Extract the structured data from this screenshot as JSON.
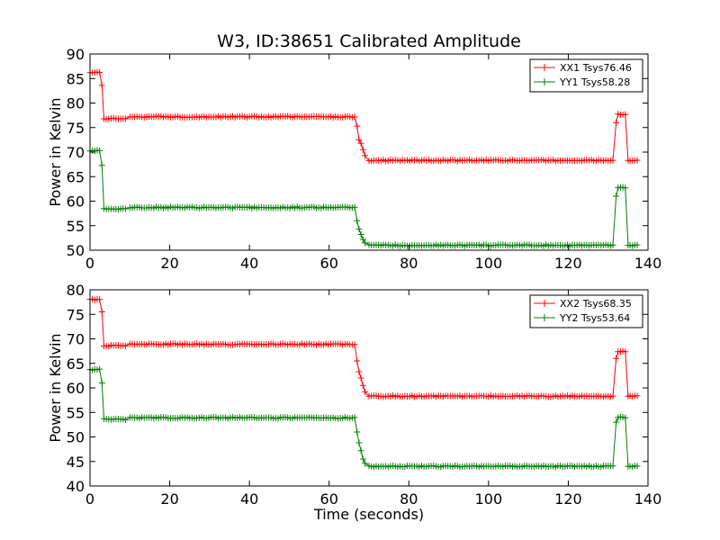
{
  "figure": {
    "title": "W3, ID:38651 Calibrated Amplitude",
    "xlabel": "Time (seconds)"
  },
  "chart_data": [
    {
      "type": "line",
      "title": "W3, ID:38651 Calibrated Amplitude",
      "xlabel": "",
      "ylabel": "Power in Kelvin",
      "xlim": [
        0,
        140
      ],
      "ylim": [
        50,
        90
      ],
      "xticks": [
        "0",
        "20",
        "40",
        "60",
        "80",
        "100",
        "120",
        "140"
      ],
      "yticks": [
        "50",
        "55",
        "60",
        "65",
        "70",
        "75",
        "80",
        "85",
        "90"
      ],
      "grid": false,
      "legend_position": "top-right",
      "marker": "+",
      "series": [
        {
          "name": "XX1 Tsys76.46",
          "color": "#ff0000",
          "segments": [
            {
              "x0": 0.0,
              "x1": 2.5,
              "y": 86.3
            },
            {
              "x0": 3.5,
              "x1": 9.0,
              "y": 76.8
            },
            {
              "x0": 10.0,
              "x1": 66.5,
              "y": 77.2
            },
            {
              "x0": 70.0,
              "x1": 131.5,
              "y": 68.3
            },
            {
              "x0": 132.5,
              "x1": 134.5,
              "y": 77.7
            },
            {
              "x0": 135.5,
              "x1": 137.5,
              "y": 68.3
            }
          ],
          "transitions": [
            {
              "x": 3.0,
              "y": 83.6
            },
            {
              "x": 67.0,
              "y": 75.3
            },
            {
              "x": 67.5,
              "y": 72.5
            },
            {
              "x": 68.0,
              "y": 71.8
            },
            {
              "x": 68.5,
              "y": 70.5
            },
            {
              "x": 69.0,
              "y": 69.3
            },
            {
              "x": 132.0,
              "y": 76.0
            },
            {
              "x": 135.0,
              "y": 68.3
            }
          ]
        },
        {
          "name": "YY1 Tsys58.28",
          "color": "#008000",
          "segments": [
            {
              "x0": 0.0,
              "x1": 2.5,
              "y": 70.3
            },
            {
              "x0": 3.5,
              "x1": 9.0,
              "y": 58.4
            },
            {
              "x0": 10.0,
              "x1": 66.5,
              "y": 58.7
            },
            {
              "x0": 70.0,
              "x1": 131.5,
              "y": 51.0
            },
            {
              "x0": 132.5,
              "x1": 134.5,
              "y": 62.8
            },
            {
              "x0": 135.5,
              "x1": 137.5,
              "y": 51.0
            }
          ],
          "transitions": [
            {
              "x": 3.0,
              "y": 67.3
            },
            {
              "x": 67.0,
              "y": 56.0
            },
            {
              "x": 67.5,
              "y": 54.3
            },
            {
              "x": 68.0,
              "y": 53.2
            },
            {
              "x": 68.5,
              "y": 52.2
            },
            {
              "x": 69.0,
              "y": 51.5
            },
            {
              "x": 132.0,
              "y": 61.0
            },
            {
              "x": 135.0,
              "y": 51.0
            }
          ]
        }
      ]
    },
    {
      "type": "line",
      "title": "",
      "xlabel": "Time (seconds)",
      "ylabel": "Power in Kelvin",
      "xlim": [
        0,
        140
      ],
      "ylim": [
        40,
        80
      ],
      "xticks": [
        "0",
        "20",
        "40",
        "60",
        "80",
        "100",
        "120",
        "140"
      ],
      "yticks": [
        "40",
        "45",
        "50",
        "55",
        "60",
        "65",
        "70",
        "75",
        "80"
      ],
      "grid": false,
      "legend_position": "top-right",
      "marker": "+",
      "series": [
        {
          "name": "XX2 Tsys68.35",
          "color": "#ff0000",
          "segments": [
            {
              "x0": 0.0,
              "x1": 2.5,
              "y": 78.0
            },
            {
              "x0": 3.5,
              "x1": 9.0,
              "y": 68.6
            },
            {
              "x0": 10.0,
              "x1": 66.5,
              "y": 68.9
            },
            {
              "x0": 70.0,
              "x1": 131.5,
              "y": 58.3
            },
            {
              "x0": 132.5,
              "x1": 134.5,
              "y": 67.4
            },
            {
              "x0": 135.5,
              "x1": 137.5,
              "y": 58.3
            }
          ],
          "transitions": [
            {
              "x": 3.0,
              "y": 75.5
            },
            {
              "x": 67.0,
              "y": 65.5
            },
            {
              "x": 67.5,
              "y": 63.3
            },
            {
              "x": 68.0,
              "y": 62.0
            },
            {
              "x": 68.5,
              "y": 60.5
            },
            {
              "x": 69.0,
              "y": 59.2
            },
            {
              "x": 132.0,
              "y": 66.0
            },
            {
              "x": 135.0,
              "y": 58.3
            }
          ]
        },
        {
          "name": "YY2 Tsys53.64",
          "color": "#008000",
          "segments": [
            {
              "x0": 0.0,
              "x1": 2.5,
              "y": 63.7
            },
            {
              "x0": 3.5,
              "x1": 9.0,
              "y": 53.6
            },
            {
              "x0": 10.0,
              "x1": 66.5,
              "y": 53.9
            },
            {
              "x0": 70.0,
              "x1": 131.5,
              "y": 44.0
            },
            {
              "x0": 132.5,
              "x1": 134.5,
              "y": 54.0
            },
            {
              "x0": 135.5,
              "x1": 137.5,
              "y": 44.0
            }
          ],
          "transitions": [
            {
              "x": 3.0,
              "y": 61.0
            },
            {
              "x": 67.0,
              "y": 51.0
            },
            {
              "x": 67.5,
              "y": 48.8
            },
            {
              "x": 68.0,
              "y": 47.2
            },
            {
              "x": 68.5,
              "y": 45.5
            },
            {
              "x": 69.0,
              "y": 44.6
            },
            {
              "x": 132.0,
              "y": 53.0
            },
            {
              "x": 135.0,
              "y": 44.0
            }
          ]
        }
      ]
    }
  ]
}
